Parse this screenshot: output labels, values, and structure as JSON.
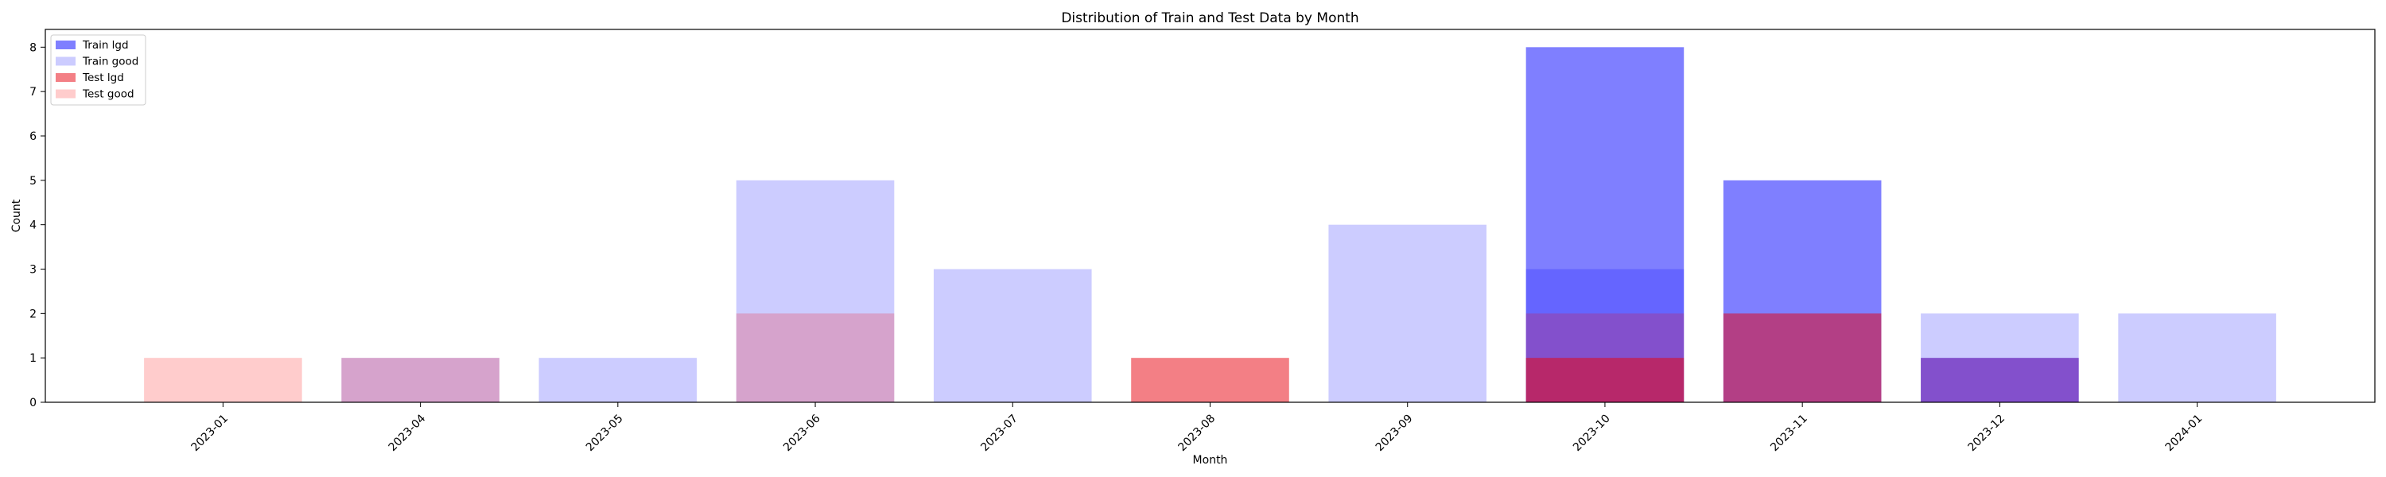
{
  "chart_data": {
    "type": "bar",
    "title": "Distribution of Train and Test Data by Month",
    "xlabel": "Month",
    "ylabel": "Count",
    "ylim": [
      0,
      8.4
    ],
    "yticks": [
      0,
      1,
      2,
      3,
      4,
      5,
      6,
      7,
      8
    ],
    "categories": [
      "2023-01",
      "2023-04",
      "2023-05",
      "2023-06",
      "2023-07",
      "2023-08",
      "2023-09",
      "2023-10",
      "2023-11",
      "2023-12",
      "2024-01"
    ],
    "legend_position": "top-left",
    "grid": false,
    "series": [
      {
        "name": "Train lgd",
        "color": "#0000ff",
        "opacity": 0.5,
        "values": [
          0,
          0,
          0,
          0,
          0,
          0,
          0,
          8,
          5,
          1,
          0
        ]
      },
      {
        "name": "Train good",
        "color": "#0000ff",
        "opacity": 0.2,
        "values": [
          0,
          1,
          1,
          5,
          3,
          0,
          4,
          3,
          0,
          2,
          2
        ]
      },
      {
        "name": "Test lgd",
        "color": "#e8000b",
        "opacity": 0.5,
        "values": [
          0,
          0,
          0,
          0,
          0,
          1,
          0,
          1,
          2,
          0,
          0
        ]
      },
      {
        "name": "Test good",
        "color": "#ff0000",
        "opacity": 0.2,
        "values": [
          1,
          1,
          0,
          2,
          0,
          0,
          0,
          2,
          0,
          1,
          0
        ]
      }
    ]
  }
}
